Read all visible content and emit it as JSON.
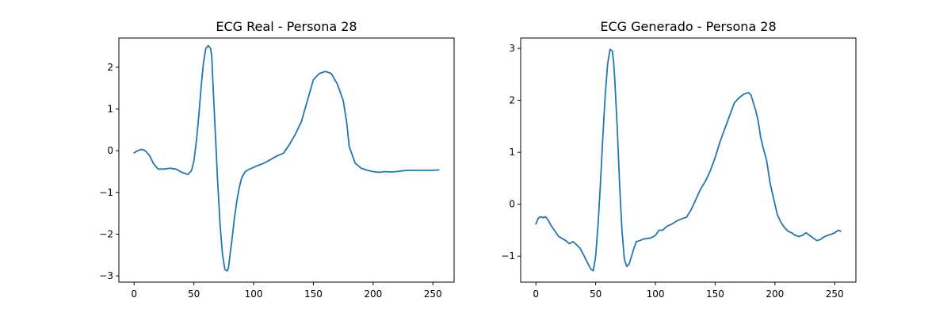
{
  "chart_data": [
    {
      "type": "line",
      "title": "ECG Real - Persona 28",
      "xlabel": "",
      "ylabel": "",
      "xlim": [
        -12.75,
        267.75
      ],
      "ylim": [
        -3.15,
        2.7
      ],
      "xticks": [
        0,
        50,
        100,
        150,
        200,
        250
      ],
      "xtick_labels": [
        "0",
        "50",
        "100",
        "150",
        "200",
        "250"
      ],
      "yticks": [
        -3,
        -2,
        -1,
        0,
        1,
        2
      ],
      "ytick_labels": [
        "−3",
        "−2",
        "−1",
        "0",
        "1",
        "2"
      ],
      "grid": false,
      "color": "#1f77b4",
      "series": [
        {
          "x": [
            0,
            3,
            6,
            8,
            10,
            13,
            16,
            20,
            25,
            30,
            35,
            40,
            45,
            48,
            50,
            52,
            54,
            56,
            58,
            60,
            62,
            64,
            65,
            66,
            68,
            70,
            72,
            74,
            76,
            78,
            79,
            80,
            82,
            84,
            86,
            88,
            90,
            93,
            96,
            100,
            103,
            106,
            110,
            115,
            120,
            125,
            130,
            135,
            140,
            145,
            150,
            155,
            160,
            165,
            170,
            175,
            178,
            180,
            185,
            190,
            195,
            200,
            205,
            210,
            215,
            220,
            225,
            230,
            235,
            240,
            245,
            250,
            255
          ],
          "values": [
            -0.05,
            0.0,
            0.03,
            0.02,
            -0.02,
            -0.12,
            -0.3,
            -0.44,
            -0.44,
            -0.42,
            -0.44,
            -0.52,
            -0.57,
            -0.48,
            -0.25,
            0.2,
            0.8,
            1.5,
            2.1,
            2.45,
            2.52,
            2.45,
            2.25,
            1.6,
            0.4,
            -0.8,
            -1.8,
            -2.5,
            -2.85,
            -2.88,
            -2.8,
            -2.55,
            -2.1,
            -1.6,
            -1.2,
            -0.88,
            -0.65,
            -0.5,
            -0.45,
            -0.4,
            -0.36,
            -0.33,
            -0.28,
            -0.2,
            -0.12,
            -0.06,
            0.15,
            0.4,
            0.7,
            1.2,
            1.7,
            1.85,
            1.9,
            1.85,
            1.6,
            1.2,
            0.65,
            0.1,
            -0.3,
            -0.42,
            -0.47,
            -0.5,
            -0.52,
            -0.5,
            -0.51,
            -0.5,
            -0.48,
            -0.47,
            -0.47,
            -0.47,
            -0.47,
            -0.47,
            -0.46
          ]
        }
      ]
    },
    {
      "type": "line",
      "title": "ECG Generado - Persona 28",
      "xlabel": "",
      "ylabel": "",
      "xlim": [
        -12.75,
        267.75
      ],
      "ylim": [
        -1.5,
        3.2
      ],
      "xticks": [
        0,
        50,
        100,
        150,
        200,
        250
      ],
      "xtick_labels": [
        "0",
        "50",
        "100",
        "150",
        "200",
        "250"
      ],
      "yticks": [
        -1,
        0,
        1,
        2,
        3
      ],
      "ytick_labels": [
        "−1",
        "0",
        "1",
        "2",
        "3"
      ],
      "grid": false,
      "color": "#1f77b4",
      "series": [
        {
          "x": [
            0,
            2,
            4,
            6,
            8,
            10,
            13,
            16,
            19,
            22,
            25,
            28,
            31,
            34,
            37,
            40,
            43,
            46,
            48,
            50,
            52,
            54,
            56,
            58,
            60,
            62,
            64,
            65,
            66,
            68,
            70,
            72,
            74,
            76,
            78,
            80,
            82,
            84,
            87,
            90,
            93,
            96,
            100,
            103,
            106,
            110,
            114,
            118,
            122,
            126,
            130,
            134,
            138,
            142,
            146,
            150,
            154,
            158,
            162,
            166,
            170,
            174,
            178,
            180,
            182,
            184,
            186,
            188,
            190,
            193,
            196,
            199,
            202,
            205,
            208,
            211,
            214,
            217,
            220,
            223,
            226,
            229,
            232,
            235,
            238,
            241,
            244,
            247,
            250,
            253,
            255
          ],
          "values": [
            -0.38,
            -0.27,
            -0.24,
            -0.26,
            -0.24,
            -0.3,
            -0.42,
            -0.52,
            -0.62,
            -0.66,
            -0.7,
            -0.76,
            -0.72,
            -0.78,
            -0.85,
            -0.98,
            -1.12,
            -1.25,
            -1.28,
            -1.0,
            -0.4,
            0.4,
            1.3,
            2.1,
            2.7,
            2.98,
            2.95,
            2.75,
            2.4,
            1.5,
            0.4,
            -0.5,
            -1.05,
            -1.2,
            -1.15,
            -1.0,
            -0.85,
            -0.72,
            -0.7,
            -0.67,
            -0.66,
            -0.65,
            -0.6,
            -0.5,
            -0.5,
            -0.42,
            -0.38,
            -0.32,
            -0.28,
            -0.25,
            -0.1,
            0.1,
            0.3,
            0.45,
            0.65,
            0.9,
            1.2,
            1.45,
            1.7,
            1.95,
            2.05,
            2.12,
            2.15,
            2.1,
            1.95,
            1.8,
            1.6,
            1.3,
            1.1,
            0.85,
            0.4,
            0.1,
            -0.2,
            -0.35,
            -0.45,
            -0.52,
            -0.55,
            -0.6,
            -0.62,
            -0.6,
            -0.55,
            -0.6,
            -0.65,
            -0.7,
            -0.68,
            -0.63,
            -0.6,
            -0.58,
            -0.55,
            -0.5,
            -0.52
          ]
        }
      ]
    }
  ]
}
